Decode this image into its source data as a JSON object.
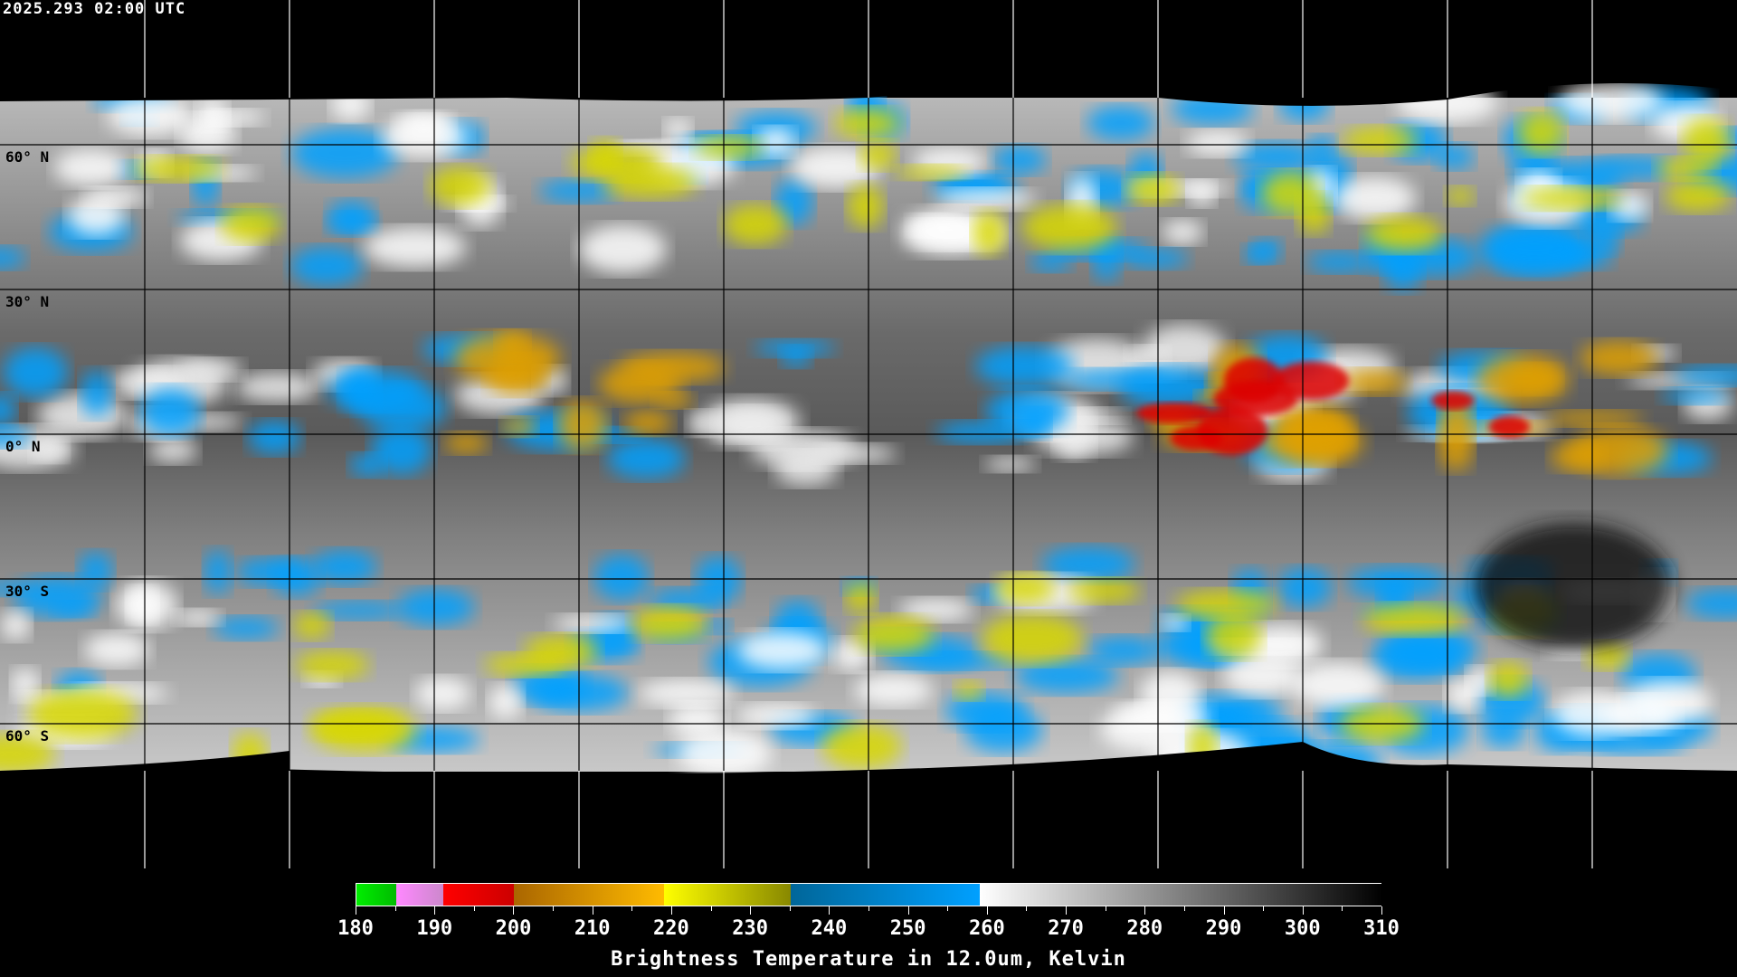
{
  "header": {
    "timestamp": "2025.293 02:00 UTC"
  },
  "map": {
    "projection": "equirectangular",
    "lat_labels": [
      "60° N",
      "30° N",
      "0° N",
      "30° S",
      "60° S"
    ],
    "gridline_color": "#000000",
    "polar_gridline_color": "#ffffff"
  },
  "colorbar": {
    "min": 180,
    "max": 310,
    "tick_labels": [
      "180",
      "190",
      "200",
      "210",
      "220",
      "230",
      "240",
      "250",
      "260",
      "270",
      "280",
      "290",
      "300",
      "310"
    ],
    "segments": [
      {
        "from": 180,
        "to": 185,
        "colors": [
          "#00ee00",
          "#00bb00"
        ]
      },
      {
        "from": 185,
        "to": 191,
        "colors": [
          "#ff88ff",
          "#cc88cc"
        ]
      },
      {
        "from": 191,
        "to": 200,
        "colors": [
          "#ff0000",
          "#cc0000"
        ]
      },
      {
        "from": 200,
        "to": 219,
        "colors": [
          "#aa6600",
          "#ffbb00"
        ]
      },
      {
        "from": 219,
        "to": 235,
        "colors": [
          "#ffff00",
          "#888800"
        ]
      },
      {
        "from": 235,
        "to": 259,
        "colors": [
          "#006699",
          "#00a0ff"
        ]
      },
      {
        "from": 259,
        "to": 310,
        "colors": [
          "#ffffff",
          "#000000"
        ]
      }
    ],
    "title": "Brightness Temperature in 12.0um, Kelvin"
  }
}
